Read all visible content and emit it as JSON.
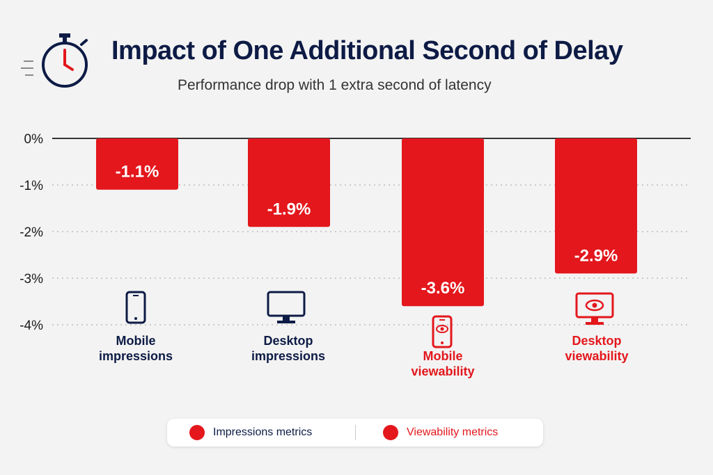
{
  "header": {
    "title": "Impact of One Additional Second of Delay",
    "subtitle": "Performance drop with 1 extra second of latency",
    "icon": "stopwatch-icon"
  },
  "colors": {
    "bar": "#e3171c",
    "title": "#0d1b45",
    "impressions_label": "#0d1b45",
    "viewability_label": "#e3171c",
    "legend_dot": "#e3171c"
  },
  "legend": {
    "items": [
      {
        "label": "Impressions metrics",
        "color": "#e3171c"
      },
      {
        "label": "Viewability metrics",
        "color": "#e3171c"
      }
    ]
  },
  "chart_data": {
    "type": "bar",
    "title": "Impact of One Additional Second of Delay",
    "subtitle": "Performance drop with 1 extra second of latency",
    "categories": [
      "Mobile impressions",
      "Desktop impressions",
      "Mobile viewability",
      "Desktop viewability"
    ],
    "category_lines": [
      [
        "Mobile",
        "impressions"
      ],
      [
        "Desktop",
        "impressions"
      ],
      [
        "Mobile",
        "viewability"
      ],
      [
        "Desktop",
        "viewability"
      ]
    ],
    "category_groups": [
      "Impressions metrics",
      "Impressions metrics",
      "Viewability metrics",
      "Viewability metrics"
    ],
    "category_icons": [
      "mobile-phone-icon",
      "desktop-monitor-icon",
      "mobile-eye-icon",
      "desktop-eye-icon"
    ],
    "values": [
      -1.1,
      -1.9,
      -3.6,
      -2.9
    ],
    "data_labels": [
      "-1.1%",
      "-1.9%",
      "-3.6%",
      "-2.9%"
    ],
    "yticks": [
      0,
      -1,
      -2,
      -3,
      -4
    ],
    "ytick_labels": [
      "0%",
      "-1%",
      "-2%",
      "-3%",
      "-4%"
    ],
    "ylim": [
      -4,
      0
    ],
    "xlabel": "",
    "ylabel": "",
    "grid": true,
    "legend_position": "bottom"
  }
}
